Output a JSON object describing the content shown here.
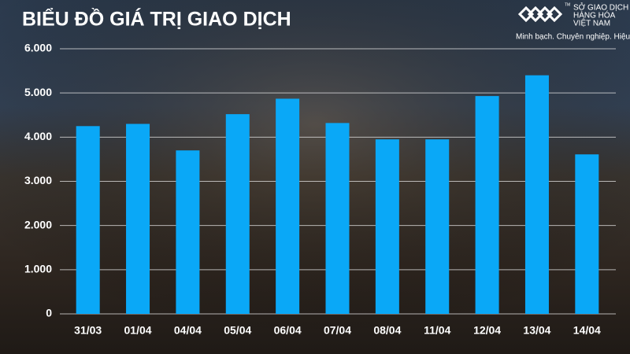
{
  "chart_data": {
    "type": "bar",
    "title": "BIỂU ĐỒ GIÁ TRỊ GIAO DỊCH",
    "brand": {
      "name_lines": [
        "SỞ GIAO DỊCH",
        "HÀNG HÓA",
        "VIỆT NAM"
      ],
      "trademark": "TM",
      "tagline": "Minh bạch. Chuyên nghiệp. Hiệu quả"
    },
    "categories": [
      "31/03",
      "01/04",
      "04/04",
      "05/04",
      "06/04",
      "07/04",
      "08/04",
      "11/04",
      "12/04",
      "13/04",
      "14/04"
    ],
    "values": [
      4250,
      4300,
      3700,
      4520,
      4870,
      4320,
      3950,
      3950,
      4930,
      5400,
      3610
    ],
    "color": "#0aa8f7",
    "ylim": [
      0,
      6000
    ],
    "yticks": [
      0,
      {
        "value": 1000,
        "label": "1.000"
      },
      {
        "value": 2000,
        "label": "2.000"
      },
      {
        "value": 3000,
        "label": "3.000"
      },
      {
        "value": 4000,
        "label": "4.000"
      },
      {
        "value": 5000,
        "label": "5.000"
      },
      {
        "value": 6000,
        "label": "6.000"
      }
    ],
    "grid": true
  }
}
